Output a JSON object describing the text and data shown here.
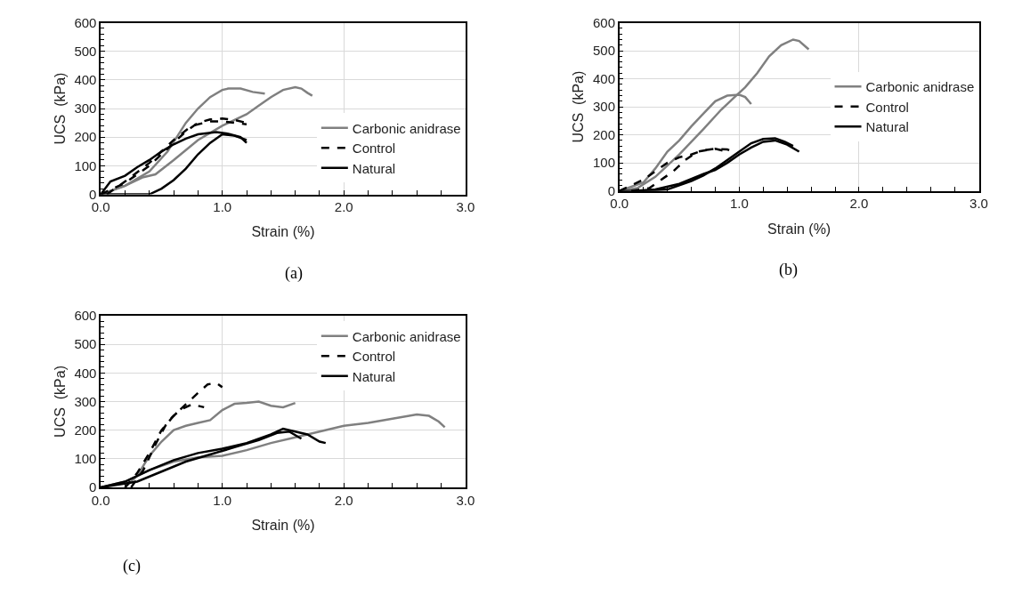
{
  "chart_data": [
    {
      "type": "line",
      "title": "(a)",
      "xlabel": "Strain (%)",
      "ylabel": "UCS  (kPa)",
      "xlim": [
        0,
        3
      ],
      "xticks": [
        {
          "value": 0,
          "label": "0.0"
        },
        {
          "value": 1,
          "label": "1.0"
        },
        {
          "value": 2,
          "label": "2.0"
        },
        {
          "value": 3,
          "label": "3.0"
        }
      ],
      "ylim": [
        0,
        600
      ],
      "yticks": [
        0,
        100,
        200,
        300,
        400,
        500,
        600
      ],
      "grid": true,
      "legend": "bottom right",
      "series": [
        {
          "name": "Carbonic anidrase",
          "color": "#808080",
          "line_style": "solid",
          "x": [
            0,
            0.2,
            0.4,
            0.55,
            0.7,
            0.8,
            0.9,
            1.0,
            1.05,
            1.15,
            1.25,
            1.35
          ],
          "values": [
            0,
            30,
            80,
            150,
            250,
            300,
            340,
            365,
            370,
            370,
            358,
            352
          ]
        },
        {
          "name": "Carbonic anidrase",
          "color": "#808080",
          "line_style": "solid",
          "x": [
            0,
            0.2,
            0.35,
            0.45,
            0.6,
            0.8,
            1.0,
            1.1,
            1.2,
            1.3,
            1.4,
            1.5,
            1.6,
            1.65,
            1.7,
            1.74
          ],
          "values": [
            0,
            30,
            60,
            70,
            120,
            190,
            240,
            260,
            280,
            310,
            340,
            365,
            375,
            370,
            355,
            345
          ]
        },
        {
          "name": "Control",
          "color": "#000000",
          "line_style": "dashed",
          "x": [
            0,
            0.1,
            0.2,
            0.3,
            0.4,
            0.5,
            0.6,
            0.7,
            0.8,
            0.9,
            1.0,
            1.1,
            1.2
          ],
          "values": [
            0,
            20,
            40,
            70,
            100,
            140,
            180,
            220,
            250,
            262,
            265,
            260,
            250
          ]
        },
        {
          "name": "Control",
          "color": "#000000",
          "line_style": "dashed",
          "x": [
            0.05,
            0.2,
            0.4,
            0.6,
            0.75,
            0.9,
            1.0,
            1.2
          ],
          "values": [
            0,
            45,
            110,
            190,
            240,
            255,
            255,
            245
          ]
        },
        {
          "name": "Natural",
          "color": "#000000",
          "line_style": "solid",
          "x": [
            0,
            0.08,
            0.2,
            0.3,
            0.4,
            0.5,
            0.6,
            0.7,
            0.8,
            0.95,
            1.05,
            1.15,
            1.2
          ],
          "values": [
            0,
            45,
            65,
            95,
            120,
            150,
            175,
            195,
            210,
            218,
            212,
            200,
            180
          ]
        },
        {
          "name": "Natural",
          "color": "#000000",
          "line_style": "solid",
          "x": [
            0,
            0.2,
            0.4,
            0.5,
            0.6,
            0.7,
            0.8,
            0.9,
            1.0,
            1.1,
            1.2
          ],
          "values": [
            0,
            0,
            0,
            20,
            50,
            90,
            140,
            180,
            210,
            205,
            190
          ]
        }
      ]
    },
    {
      "type": "line",
      "title": "(b)",
      "xlabel": "Strain (%)",
      "ylabel": "UCS  (kPa)",
      "xlim": [
        0,
        3
      ],
      "xticks": [
        {
          "value": 0,
          "label": "0.0"
        },
        {
          "value": 1,
          "label": "1.0"
        },
        {
          "value": 2,
          "label": "2.0"
        },
        {
          "value": 3,
          "label": "3.0"
        }
      ],
      "ylim": [
        0,
        600
      ],
      "yticks": [
        0,
        100,
        200,
        300,
        400,
        500,
        600
      ],
      "grid": true,
      "legend": "right",
      "series": [
        {
          "name": "Carbonic anidrase",
          "color": "#808080",
          "line_style": "solid",
          "x": [
            0,
            0.15,
            0.3,
            0.5,
            0.7,
            0.85,
            0.95,
            1.05,
            1.15,
            1.25,
            1.35,
            1.45,
            1.5,
            1.58
          ],
          "values": [
            0,
            10,
            50,
            130,
            220,
            290,
            330,
            370,
            420,
            480,
            520,
            540,
            535,
            505
          ]
        },
        {
          "name": "Carbonic anidrase",
          "color": "#808080",
          "line_style": "solid",
          "x": [
            0,
            0.2,
            0.3,
            0.4,
            0.5,
            0.6,
            0.7,
            0.8,
            0.9,
            1.0,
            1.05,
            1.1
          ],
          "values": [
            0,
            30,
            80,
            140,
            180,
            230,
            275,
            320,
            340,
            343,
            335,
            310
          ]
        },
        {
          "name": "Control",
          "color": "#000000",
          "line_style": "dashed",
          "x": [
            0,
            0.1,
            0.2,
            0.3,
            0.4,
            0.5,
            0.6,
            0.7,
            0.8,
            0.9,
            0.95
          ],
          "values": [
            0,
            20,
            40,
            70,
            100,
            120,
            130,
            145,
            150,
            148,
            140
          ]
        },
        {
          "name": "Control",
          "color": "#000000",
          "line_style": "dashed",
          "x": [
            0.1,
            0.25,
            0.35,
            0.45,
            0.55,
            0.65,
            0.8,
            0.9
          ],
          "values": [
            0,
            10,
            40,
            70,
            110,
            140,
            150,
            140
          ]
        },
        {
          "name": "Natural",
          "color": "#000000",
          "line_style": "solid",
          "x": [
            0,
            0.2,
            0.4,
            0.5,
            0.6,
            0.7,
            0.8,
            0.9,
            1.0,
            1.1,
            1.2,
            1.3,
            1.38,
            1.45
          ],
          "values": [
            0,
            0,
            5,
            20,
            35,
            55,
            80,
            110,
            140,
            170,
            185,
            188,
            175,
            160
          ]
        },
        {
          "name": "Natural",
          "color": "#000000",
          "line_style": "solid",
          "x": [
            0.1,
            0.3,
            0.5,
            0.7,
            0.8,
            0.9,
            1.0,
            1.1,
            1.2,
            1.3,
            1.4,
            1.5
          ],
          "values": [
            0,
            5,
            25,
            60,
            75,
            100,
            130,
            155,
            175,
            180,
            165,
            140
          ]
        }
      ]
    },
    {
      "type": "line",
      "title": "(c)",
      "xlabel": "Strain (%)",
      "ylabel": "UCS  (kPa)",
      "xlim": [
        0,
        3
      ],
      "xticks": [
        {
          "value": 0,
          "label": "0.0"
        },
        {
          "value": 1,
          "label": "1.0"
        },
        {
          "value": 2,
          "label": "2.0"
        },
        {
          "value": 3,
          "label": "3.0"
        }
      ],
      "ylim": [
        0,
        600
      ],
      "yticks": [
        0,
        100,
        200,
        300,
        400,
        500,
        600
      ],
      "grid": true,
      "legend": "top right",
      "series": [
        {
          "name": "Carbonic anidrase",
          "color": "#808080",
          "line_style": "solid",
          "x": [
            0.2,
            0.3,
            0.4,
            0.5,
            0.6,
            0.7,
            0.8,
            0.9,
            1.0,
            1.1,
            1.2,
            1.3,
            1.4,
            1.5,
            1.6
          ],
          "values": [
            0,
            40,
            110,
            160,
            200,
            215,
            225,
            235,
            270,
            292,
            295,
            300,
            285,
            280,
            295
          ]
        },
        {
          "name": "Carbonic anidrase",
          "color": "#808080",
          "line_style": "solid",
          "x": [
            0,
            0.2,
            0.4,
            0.6,
            0.8,
            1.0,
            1.2,
            1.4,
            1.6,
            1.8,
            2.0,
            2.2,
            2.4,
            2.6,
            2.7,
            2.78,
            2.83
          ],
          "values": [
            0,
            20,
            60,
            90,
            105,
            110,
            130,
            155,
            175,
            195,
            215,
            225,
            240,
            255,
            250,
            230,
            210
          ]
        },
        {
          "name": "Control",
          "color": "#000000",
          "line_style": "dashed",
          "x": [
            0.2,
            0.3,
            0.4,
            0.5,
            0.6,
            0.7,
            0.8,
            0.88,
            0.95,
            1.0
          ],
          "values": [
            0,
            50,
            120,
            200,
            250,
            290,
            330,
            360,
            365,
            350
          ]
        },
        {
          "name": "Control",
          "color": "#000000",
          "line_style": "dashed",
          "x": [
            0.25,
            0.35,
            0.45,
            0.55,
            0.65,
            0.75,
            0.85
          ],
          "values": [
            0,
            60,
            150,
            230,
            270,
            290,
            280
          ]
        },
        {
          "name": "Natural",
          "color": "#000000",
          "line_style": "solid",
          "x": [
            0,
            0.2,
            0.4,
            0.6,
            0.8,
            1.0,
            1.2,
            1.4,
            1.5,
            1.6,
            1.7,
            1.8,
            1.85
          ],
          "values": [
            0,
            20,
            60,
            95,
            120,
            135,
            155,
            185,
            205,
            195,
            185,
            160,
            155
          ]
        },
        {
          "name": "Natural",
          "color": "#000000",
          "line_style": "solid",
          "x": [
            0,
            0.3,
            0.5,
            0.7,
            0.9,
            1.1,
            1.3,
            1.45,
            1.55,
            1.65
          ],
          "values": [
            0,
            20,
            55,
            90,
            115,
            140,
            165,
            190,
            195,
            170
          ]
        }
      ]
    }
  ]
}
